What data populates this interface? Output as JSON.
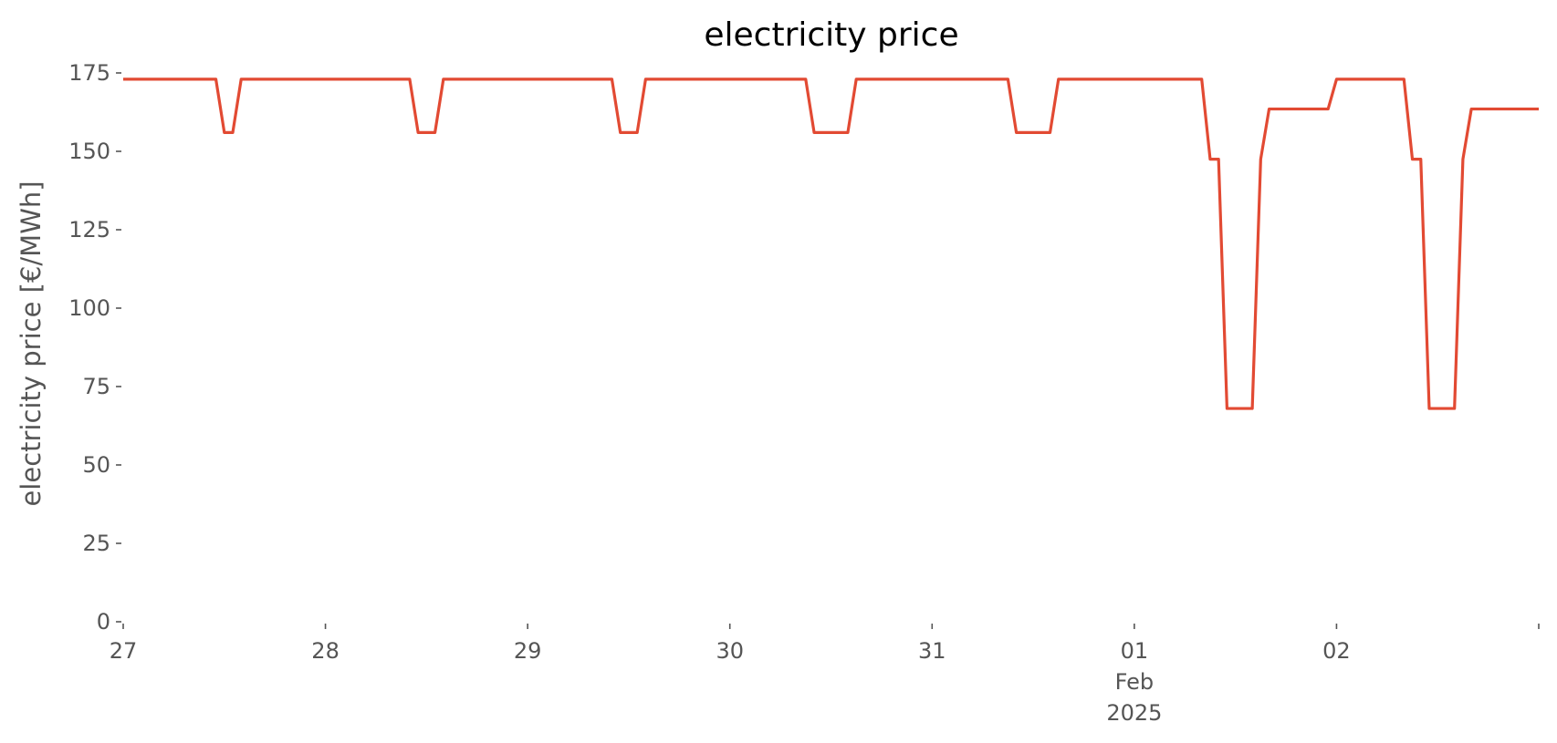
{
  "chart_data": {
    "type": "line",
    "title": "electricity price",
    "xlabel": "",
    "ylabel": "electricity price [€/MWh]",
    "xlim": [
      "2025-01-27 00:00",
      "2025-02-03 00:00"
    ],
    "ylim": [
      0,
      175
    ],
    "yticks": [
      0,
      25,
      50,
      75,
      100,
      125,
      150,
      175
    ],
    "xticks": [
      {
        "x": "2025-01-27 00:00",
        "label": "27",
        "label2": "",
        "label3": ""
      },
      {
        "x": "2025-01-28 00:00",
        "label": "28",
        "label2": "",
        "label3": ""
      },
      {
        "x": "2025-01-29 00:00",
        "label": "29",
        "label2": "",
        "label3": ""
      },
      {
        "x": "2025-01-30 00:00",
        "label": "30",
        "label2": "",
        "label3": ""
      },
      {
        "x": "2025-01-31 00:00",
        "label": "31",
        "label2": "",
        "label3": ""
      },
      {
        "x": "2025-02-01 00:00",
        "label": "01",
        "label2": "Feb",
        "label3": "2025"
      },
      {
        "x": "2025-02-02 00:00",
        "label": "02",
        "label2": "",
        "label3": ""
      },
      {
        "x": "2025-02-03 00:00",
        "label": "",
        "label2": "",
        "label3": ""
      }
    ],
    "grid": false,
    "legend": "none",
    "series": [
      {
        "color": "#e24a33",
        "x": [
          "2025-01-27 00:00",
          "2025-01-27 11:00",
          "2025-01-27 12:00",
          "2025-01-27 13:00",
          "2025-01-27 14:00",
          "2025-01-28 10:00",
          "2025-01-28 11:00",
          "2025-01-28 13:00",
          "2025-01-28 14:00",
          "2025-01-29 10:00",
          "2025-01-29 11:00",
          "2025-01-29 13:00",
          "2025-01-29 14:00",
          "2025-01-30 09:00",
          "2025-01-30 10:00",
          "2025-01-30 14:00",
          "2025-01-30 15:00",
          "2025-01-31 09:00",
          "2025-01-31 10:00",
          "2025-01-31 14:00",
          "2025-01-31 15:00",
          "2025-02-01 08:00",
          "2025-02-01 09:00",
          "2025-02-01 10:00",
          "2025-02-01 11:00",
          "2025-02-01 14:00",
          "2025-02-01 15:00",
          "2025-02-01 16:00",
          "2025-02-01 23:00",
          "2025-02-02 00:00",
          "2025-02-02 08:00",
          "2025-02-02 09:00",
          "2025-02-02 10:00",
          "2025-02-02 11:00",
          "2025-02-02 14:00",
          "2025-02-02 15:00",
          "2025-02-02 16:00",
          "2025-02-03 00:00"
        ],
        "y": [
          173,
          173,
          156,
          156,
          173,
          173,
          156,
          156,
          173,
          173,
          156,
          156,
          173,
          173,
          156,
          156,
          173,
          173,
          156,
          156,
          173,
          173,
          147.5,
          147.5,
          68,
          68,
          147.5,
          163.5,
          163.5,
          173,
          173,
          147.5,
          147.5,
          68,
          68,
          147.5,
          163.5,
          163.5
        ]
      }
    ]
  }
}
